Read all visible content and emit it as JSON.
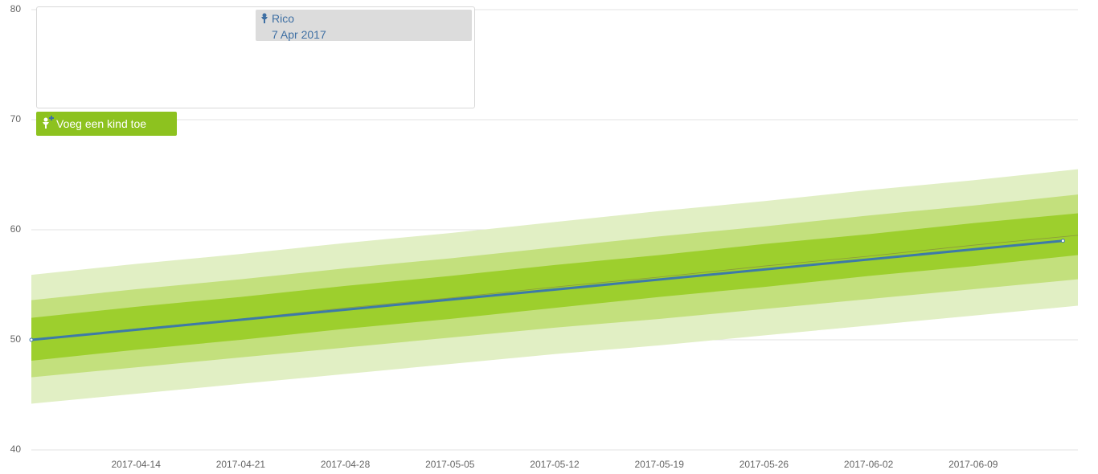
{
  "chart_data": {
    "type": "line",
    "ylim": [
      40,
      80
    ],
    "yticks": [
      40,
      50,
      60,
      70,
      80
    ],
    "grid": true,
    "xlim": [
      "2017-04-07",
      "2017-06-16"
    ],
    "xticks": [
      "2017-04-14",
      "2017-04-21",
      "2017-04-28",
      "2017-05-05",
      "2017-05-12",
      "2017-05-19",
      "2017-05-26",
      "2017-06-02",
      "2017-06-09"
    ],
    "band_x": [
      "2017-04-07",
      "2017-04-14",
      "2017-04-21",
      "2017-04-28",
      "2017-05-05",
      "2017-05-12",
      "2017-05-19",
      "2017-05-26",
      "2017-06-02",
      "2017-06-09",
      "2017-06-16"
    ],
    "bands": [
      {
        "color": "#e1efc4",
        "upper": [
          55.9,
          56.9,
          57.8,
          58.8,
          59.7,
          60.7,
          61.7,
          62.6,
          63.6,
          64.5,
          65.5
        ],
        "lower": [
          44.2,
          45.1,
          46.0,
          46.9,
          47.8,
          48.7,
          49.5,
          50.4,
          51.3,
          52.2,
          53.1
        ]
      },
      {
        "color": "#c3e07d",
        "upper": [
          53.6,
          54.6,
          55.5,
          56.5,
          57.4,
          58.4,
          59.4,
          60.3,
          61.3,
          62.2,
          63.2
        ],
        "lower": [
          46.6,
          47.5,
          48.4,
          49.3,
          50.2,
          51.1,
          51.9,
          52.8,
          53.7,
          54.6,
          55.5
        ]
      },
      {
        "color": "#9dcf2d",
        "upper": [
          52.0,
          53.0,
          53.9,
          54.9,
          55.8,
          56.8,
          57.7,
          58.7,
          59.6,
          60.6,
          61.5
        ],
        "lower": [
          48.1,
          49.1,
          50.0,
          51.0,
          51.9,
          52.9,
          53.9,
          54.8,
          55.8,
          56.7,
          57.7
        ]
      }
    ],
    "median": {
      "color": "#8a9a3c",
      "values": [
        50.0,
        51.0,
        51.9,
        52.9,
        53.8,
        54.8,
        55.7,
        56.7,
        57.6,
        58.6,
        59.5
      ]
    },
    "series": [
      {
        "color": "#3d7aa8",
        "x": [
          "2017-04-07",
          "2017-06-15"
        ],
        "values": [
          50.0,
          59.0
        ]
      }
    ]
  },
  "ui": {
    "children": [
      {
        "name": "Rico",
        "date": "7 Apr 2017"
      }
    ],
    "add_button": "Voeg een kind toe"
  }
}
